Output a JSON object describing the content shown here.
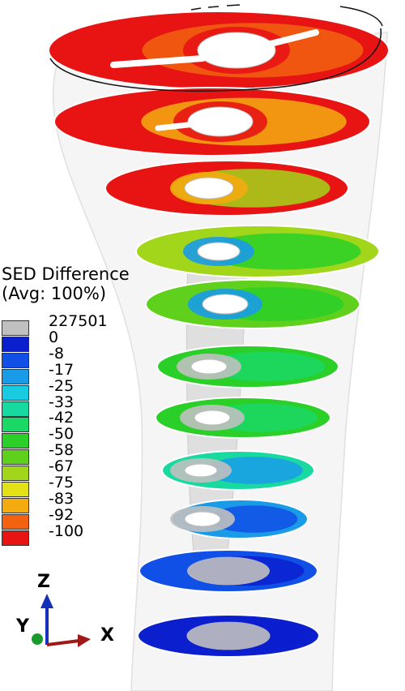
{
  "legend": {
    "title_line1": "SED Difference",
    "title_line2": "(Avg: 100%)",
    "entries": [
      {
        "label": "227501",
        "color": "#c0c0c0"
      },
      {
        "label": "0",
        "color": "#0b1fcf"
      },
      {
        "label": "-8",
        "color": "#1050e6"
      },
      {
        "label": "-17",
        "color": "#1a9be8"
      },
      {
        "label": "-25",
        "color": "#18cbe0"
      },
      {
        "label": "-33",
        "color": "#18d9a0"
      },
      {
        "label": "-42",
        "color": "#1ad865"
      },
      {
        "label": "-50",
        "color": "#2ad028"
      },
      {
        "label": "-58",
        "color": "#5fd01c"
      },
      {
        "label": "-67",
        "color": "#a2d61a"
      },
      {
        "label": "-75",
        "color": "#e2e216"
      },
      {
        "label": "-83",
        "color": "#f3ab10"
      },
      {
        "label": "-92",
        "color": "#f26210"
      },
      {
        "label": "-100",
        "color": "#e81414"
      }
    ]
  },
  "triad": {
    "z": "Z",
    "y": "Y",
    "x": "X"
  },
  "colors": {
    "bone_outline": "#cfcfcf",
    "bone_fill": "#ececec",
    "implant_fill": "#dadada",
    "axis_x": "#a01818",
    "axis_y": "#1a9a2a",
    "axis_z": "#1530b8"
  }
}
